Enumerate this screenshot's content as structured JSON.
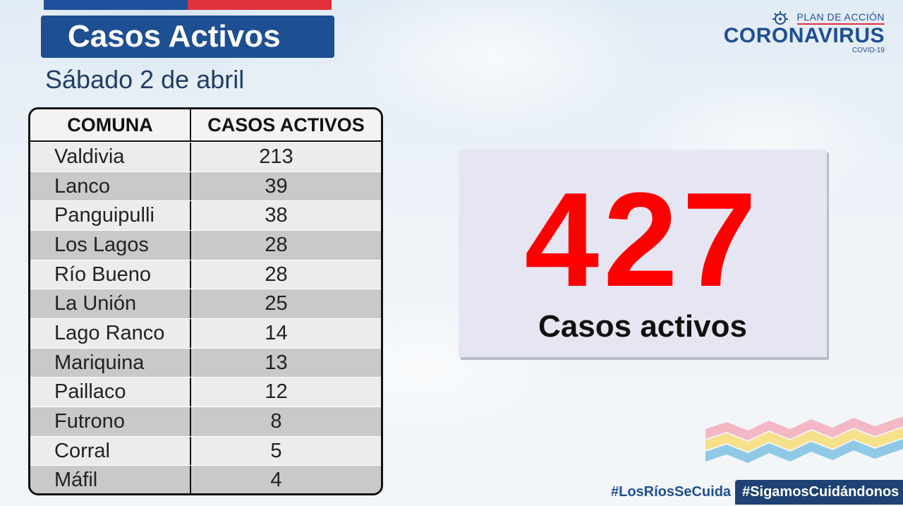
{
  "title": "Casos Activos",
  "date": "Sábado 2 de abril",
  "table": {
    "headers": [
      "COMUNA",
      "CASOS ACTIVOS"
    ],
    "rows": [
      {
        "comuna": "Valdivia",
        "casos": "213"
      },
      {
        "comuna": "Lanco",
        "casos": "39"
      },
      {
        "comuna": "Panguipulli",
        "casos": "38"
      },
      {
        "comuna": "Los Lagos",
        "casos": "28"
      },
      {
        "comuna": "Río Bueno",
        "casos": "28"
      },
      {
        "comuna": "La Unión",
        "casos": "25"
      },
      {
        "comuna": "Lago Ranco",
        "casos": "14"
      },
      {
        "comuna": "Mariquina",
        "casos": "13"
      },
      {
        "comuna": "Paillaco",
        "casos": "12"
      },
      {
        "comuna": "Futrono",
        "casos": "8"
      },
      {
        "comuna": "Corral",
        "casos": "5"
      },
      {
        "comuna": "Máfil",
        "casos": "4"
      }
    ]
  },
  "total": {
    "number": "427",
    "label": "Casos activos"
  },
  "logo": {
    "plan": "PLAN DE ACCIÓN",
    "main": "CORONAVIRUS",
    "sub": "COVID-19"
  },
  "hashtags": {
    "primary": "#LosRíosSeCuida",
    "secondary": "#SigamosCuidándonos"
  },
  "colors": {
    "brand_blue": "#1f4f93",
    "flag_red": "#e0323d",
    "total_red": "#ff0000",
    "dark_navy": "#1d4273"
  }
}
